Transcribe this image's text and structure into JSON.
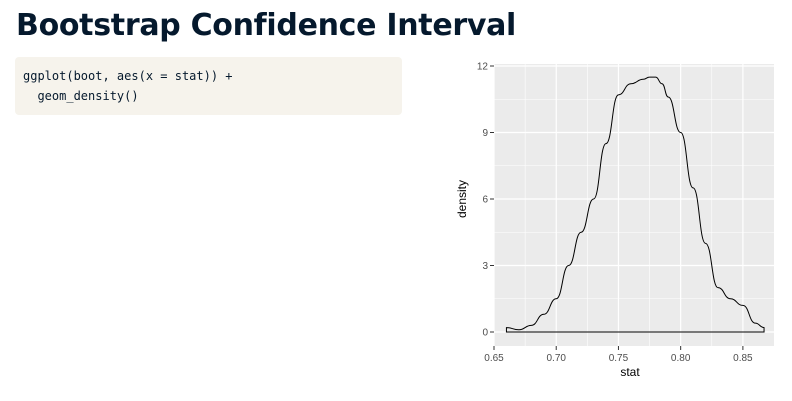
{
  "slide": {
    "title": "Bootstrap Confidence Interval"
  },
  "code": {
    "lines": [
      "ggplot(boot, aes(x = stat)) +",
      "  geom_density()"
    ]
  },
  "colors": {
    "title": "#05192d",
    "code_background": "#f6f3ec",
    "panel_background": "#ebebeb",
    "grid": "#ffffff",
    "line": "#000000"
  },
  "chart_data": {
    "type": "area",
    "title": "",
    "xlabel": "stat",
    "ylabel": "density",
    "xlim": [
      0.65,
      0.875
    ],
    "ylim": [
      0,
      12
    ],
    "grid": true,
    "x_ticks": [
      "0.65",
      "0.70",
      "0.75",
      "0.80",
      "0.85"
    ],
    "y_ticks": [
      "0",
      "3",
      "6",
      "9",
      "12"
    ],
    "series": [
      {
        "x": [
          0.66,
          0.67,
          0.68,
          0.69,
          0.7,
          0.71,
          0.72,
          0.73,
          0.74,
          0.75,
          0.76,
          0.77,
          0.775,
          0.78,
          0.785,
          0.79,
          0.8,
          0.81,
          0.82,
          0.83,
          0.84,
          0.85,
          0.86,
          0.867
        ],
        "y": [
          0.2,
          0.1,
          0.3,
          0.8,
          1.5,
          3.0,
          4.5,
          6.0,
          8.5,
          10.7,
          11.2,
          11.4,
          11.5,
          11.5,
          11.2,
          10.6,
          9.0,
          6.5,
          4.0,
          2.0,
          1.5,
          1.2,
          0.4,
          0.2
        ]
      }
    ]
  }
}
